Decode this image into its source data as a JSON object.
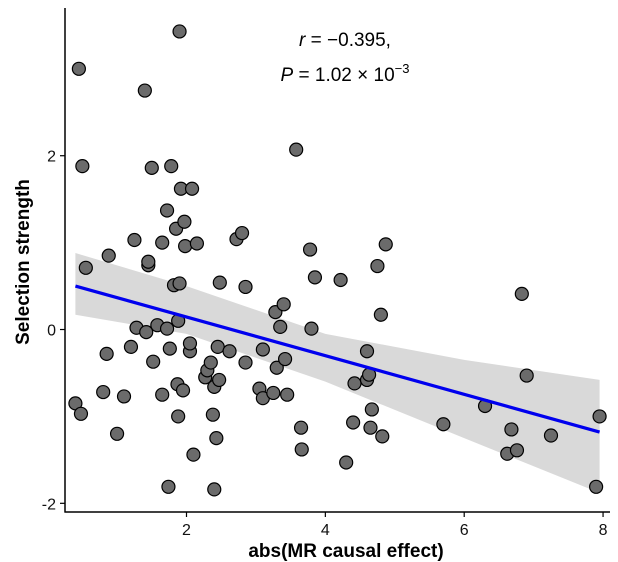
{
  "chart_data": {
    "type": "scatter",
    "xlabel": "abs(MR causal effect)",
    "ylabel": "Selection strength",
    "xlim": [
      0.25,
      8.1
    ],
    "ylim": [
      -2.1,
      3.7
    ],
    "x_ticks": [
      2,
      4,
      6,
      8
    ],
    "y_ticks": [
      -2,
      0,
      2
    ],
    "grid": false,
    "annotation": {
      "r_symbol": "r",
      "r_rest": " = −0.395,",
      "p_symbol": "P",
      "p_rest": " = 1.02 × 10",
      "p_exp": "−3"
    },
    "colors": {
      "point_fill": "#6b6b6b",
      "point_stroke": "#000000",
      "fit_line": "#0000ee",
      "confidence_band": "#d9d9d9"
    },
    "fit": {
      "method": "linear regression",
      "x": [
        0.4,
        7.95
      ],
      "y": [
        0.5,
        -1.18
      ],
      "band": {
        "x": [
          0.4,
          2,
          4,
          6,
          7.95
        ],
        "lower": [
          0.17,
          -0.05,
          -0.6,
          -1.25,
          -1.88
        ],
        "upper": [
          0.88,
          0.5,
          -0.05,
          -0.35,
          -0.58
        ]
      }
    },
    "points": [
      {
        "x": 0.45,
        "y": 3.0
      },
      {
        "x": 0.5,
        "y": 1.88
      },
      {
        "x": 0.55,
        "y": 0.71
      },
      {
        "x": 0.4,
        "y": -0.85
      },
      {
        "x": 0.48,
        "y": -0.97
      },
      {
        "x": 0.8,
        "y": -0.72
      },
      {
        "x": 0.85,
        "y": -0.28
      },
      {
        "x": 0.88,
        "y": 0.85
      },
      {
        "x": 1.0,
        "y": -1.2
      },
      {
        "x": 1.1,
        "y": -0.77
      },
      {
        "x": 1.2,
        "y": -0.2
      },
      {
        "x": 1.25,
        "y": 1.03
      },
      {
        "x": 1.28,
        "y": 0.02
      },
      {
        "x": 1.4,
        "y": 2.75
      },
      {
        "x": 1.42,
        "y": -0.03
      },
      {
        "x": 1.45,
        "y": 0.74
      },
      {
        "x": 1.45,
        "y": 0.78
      },
      {
        "x": 1.5,
        "y": 1.86
      },
      {
        "x": 1.52,
        "y": -0.37
      },
      {
        "x": 1.58,
        "y": 0.05
      },
      {
        "x": 1.65,
        "y": 1.0
      },
      {
        "x": 1.65,
        "y": -0.75
      },
      {
        "x": 1.72,
        "y": 1.37
      },
      {
        "x": 1.72,
        "y": 0.01
      },
      {
        "x": 1.74,
        "y": -1.81
      },
      {
        "x": 1.76,
        "y": -0.22
      },
      {
        "x": 1.78,
        "y": 1.88
      },
      {
        "x": 1.82,
        "y": 0.51
      },
      {
        "x": 1.85,
        "y": 1.16
      },
      {
        "x": 1.87,
        "y": -0.63
      },
      {
        "x": 1.88,
        "y": 0.1
      },
      {
        "x": 1.88,
        "y": -1.0
      },
      {
        "x": 1.9,
        "y": 3.43
      },
      {
        "x": 1.9,
        "y": 0.53
      },
      {
        "x": 1.92,
        "y": 1.62
      },
      {
        "x": 1.95,
        "y": -0.7
      },
      {
        "x": 1.97,
        "y": 1.24
      },
      {
        "x": 1.98,
        "y": 0.96
      },
      {
        "x": 2.05,
        "y": -0.25
      },
      {
        "x": 2.05,
        "y": -0.16
      },
      {
        "x": 2.08,
        "y": 1.62
      },
      {
        "x": 2.1,
        "y": -1.44
      },
      {
        "x": 2.15,
        "y": 0.99
      },
      {
        "x": 2.27,
        "y": -0.55
      },
      {
        "x": 2.3,
        "y": -0.47
      },
      {
        "x": 2.35,
        "y": -0.38
      },
      {
        "x": 2.38,
        "y": -0.98
      },
      {
        "x": 2.4,
        "y": -1.84
      },
      {
        "x": 2.4,
        "y": -0.66
      },
      {
        "x": 2.43,
        "y": -1.25
      },
      {
        "x": 2.45,
        "y": -0.2
      },
      {
        "x": 2.47,
        "y": -0.58
      },
      {
        "x": 2.48,
        "y": 0.54
      },
      {
        "x": 2.62,
        "y": -0.25
      },
      {
        "x": 2.72,
        "y": 1.04
      },
      {
        "x": 2.8,
        "y": 1.11
      },
      {
        "x": 2.85,
        "y": 0.49
      },
      {
        "x": 2.85,
        "y": -0.38
      },
      {
        "x": 3.05,
        "y": -0.68
      },
      {
        "x": 3.1,
        "y": -0.23
      },
      {
        "x": 3.1,
        "y": -0.79
      },
      {
        "x": 3.25,
        "y": -0.73
      },
      {
        "x": 3.28,
        "y": 0.2
      },
      {
        "x": 3.3,
        "y": -0.44
      },
      {
        "x": 3.35,
        "y": 0.03
      },
      {
        "x": 3.4,
        "y": 0.29
      },
      {
        "x": 3.42,
        "y": -0.34
      },
      {
        "x": 3.45,
        "y": -0.75
      },
      {
        "x": 3.58,
        "y": 2.07
      },
      {
        "x": 3.65,
        "y": -1.13
      },
      {
        "x": 3.66,
        "y": -1.38
      },
      {
        "x": 3.78,
        "y": 0.92
      },
      {
        "x": 3.8,
        "y": 0.01
      },
      {
        "x": 3.85,
        "y": 0.6
      },
      {
        "x": 4.22,
        "y": 0.57
      },
      {
        "x": 4.3,
        "y": -1.53
      },
      {
        "x": 4.4,
        "y": -1.07
      },
      {
        "x": 4.42,
        "y": -0.62
      },
      {
        "x": 4.6,
        "y": -0.25
      },
      {
        "x": 4.6,
        "y": -0.58
      },
      {
        "x": 4.63,
        "y": -0.52
      },
      {
        "x": 4.65,
        "y": -1.13
      },
      {
        "x": 4.67,
        "y": -0.92
      },
      {
        "x": 4.75,
        "y": 0.73
      },
      {
        "x": 4.8,
        "y": 0.17
      },
      {
        "x": 4.82,
        "y": -1.23
      },
      {
        "x": 4.87,
        "y": 0.98
      },
      {
        "x": 5.7,
        "y": -1.09
      },
      {
        "x": 6.3,
        "y": -0.88
      },
      {
        "x": 6.62,
        "y": -1.43
      },
      {
        "x": 6.68,
        "y": -1.15
      },
      {
        "x": 6.76,
        "y": -1.39
      },
      {
        "x": 6.83,
        "y": 0.41
      },
      {
        "x": 6.9,
        "y": -0.53
      },
      {
        "x": 7.25,
        "y": -1.22
      },
      {
        "x": 7.9,
        "y": -1.81
      },
      {
        "x": 7.95,
        "y": -1.0
      }
    ]
  }
}
